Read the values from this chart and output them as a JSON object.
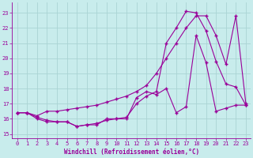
{
  "title": "",
  "xlabel": "Windchill (Refroidissement éolien,°C)",
  "ylabel": "",
  "bg_color": "#c8ecec",
  "grid_color": "#aad4d4",
  "line_color": "#990099",
  "xlim": [
    -0.5,
    23.5
  ],
  "ylim": [
    14.7,
    23.7
  ],
  "yticks": [
    15,
    16,
    17,
    18,
    19,
    20,
    21,
    22,
    23
  ],
  "xticks": [
    0,
    1,
    2,
    3,
    4,
    5,
    6,
    7,
    8,
    9,
    10,
    11,
    12,
    13,
    14,
    15,
    16,
    17,
    18,
    19,
    20,
    21,
    22,
    23
  ],
  "line1_x": [
    0,
    1,
    2,
    3,
    4,
    5,
    6,
    7,
    8,
    9,
    10,
    11,
    12,
    13,
    14,
    15,
    16,
    17,
    18,
    19,
    20,
    21,
    22,
    23
  ],
  "line1_y": [
    16.4,
    16.4,
    16.0,
    15.8,
    15.8,
    15.8,
    15.5,
    15.6,
    15.6,
    16.0,
    16.0,
    16.0,
    17.4,
    17.8,
    17.6,
    18.0,
    16.4,
    16.8,
    21.5,
    19.7,
    16.5,
    16.7,
    16.9,
    16.9
  ],
  "line2_x": [
    0,
    1,
    2,
    3,
    4,
    5,
    6,
    7,
    8,
    9,
    10,
    11,
    12,
    13,
    14,
    15,
    16,
    17,
    18,
    19,
    20,
    21,
    22,
    23
  ],
  "line2_y": [
    16.4,
    16.4,
    16.1,
    15.9,
    15.8,
    15.8,
    15.5,
    15.6,
    15.7,
    15.9,
    16.0,
    16.1,
    17.0,
    17.5,
    17.8,
    21.0,
    22.0,
    23.1,
    23.0,
    21.8,
    19.8,
    18.3,
    18.1,
    16.9
  ],
  "line3_x": [
    0,
    1,
    2,
    3,
    4,
    5,
    6,
    7,
    8,
    9,
    10,
    11,
    12,
    13,
    14,
    15,
    16,
    17,
    18,
    19,
    20,
    21,
    22,
    23
  ],
  "line3_y": [
    16.4,
    16.4,
    16.2,
    16.5,
    16.5,
    16.6,
    16.7,
    16.8,
    16.9,
    17.1,
    17.3,
    17.5,
    17.8,
    18.2,
    19.0,
    20.0,
    21.0,
    22.0,
    22.8,
    22.8,
    21.5,
    19.6,
    22.8,
    17.0
  ]
}
